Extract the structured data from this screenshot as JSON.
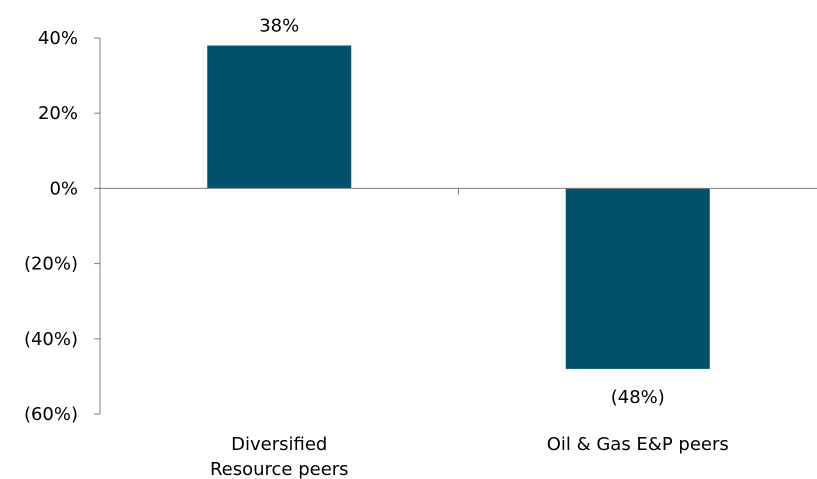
{
  "chart_data": {
    "type": "bar",
    "categories": [
      "Diversified\nResource peers",
      "Oil & Gas E&P peers"
    ],
    "values": [
      38,
      -48
    ],
    "data_labels": [
      "38%",
      "(48%)"
    ],
    "ylim": [
      -60,
      40
    ],
    "yticks": [
      40,
      20,
      0,
      -20,
      -40,
      -60
    ],
    "ytick_labels": [
      "40%",
      "20%",
      "0%",
      "(20%)",
      "(40%)",
      "(60%)"
    ],
    "bar_color": "#02506B",
    "grid": false,
    "title": "",
    "xlabel": "",
    "ylabel": ""
  }
}
